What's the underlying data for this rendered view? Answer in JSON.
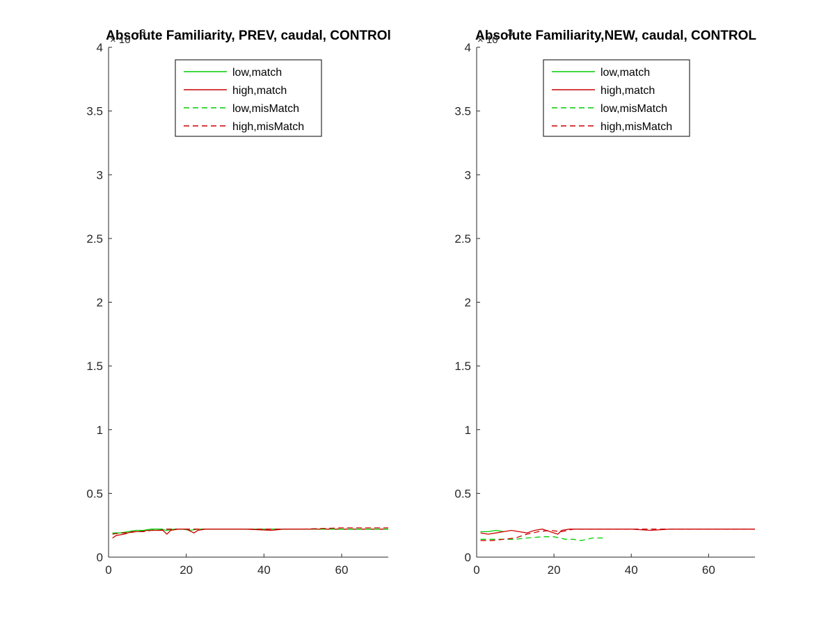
{
  "chart_data": [
    {
      "type": "line",
      "title": "Absolute Familiarity, PREV, caudal, CONTROl",
      "y_exponent_label": "× 10",
      "y_exponent_power": "-3",
      "xlabel": "",
      "ylabel": "",
      "xlim": [
        0,
        72
      ],
      "ylim": [
        0,
        4
      ],
      "xticks": [
        0,
        20,
        40,
        60
      ],
      "xtick_labels": [
        "0",
        "20",
        "40",
        "60"
      ],
      "yticks": [
        0,
        0.5,
        1,
        1.5,
        2,
        2.5,
        3,
        3.5,
        4
      ],
      "ytick_labels": [
        "0",
        "0.5",
        "1",
        "1.5",
        "2",
        "2.5",
        "3",
        "3.5",
        "4"
      ],
      "grid": false,
      "legend_position": "top-center",
      "series": [
        {
          "name": "low,match",
          "color": "#00cc00",
          "dash": "solid",
          "x": [
            1,
            3,
            5,
            7,
            9,
            11,
            13,
            15,
            17,
            19,
            21,
            23,
            25,
            27,
            30,
            40,
            50,
            60,
            72
          ],
          "y": [
            0.19,
            0.19,
            0.2,
            0.21,
            0.21,
            0.22,
            0.22,
            0.21,
            0.22,
            0.22,
            0.21,
            0.22,
            0.22,
            0.22,
            0.22,
            0.22,
            0.22,
            0.22,
            0.22
          ]
        },
        {
          "name": "high,match",
          "color": "#cc0000",
          "dash": "solid",
          "x": [
            1,
            2,
            4,
            6,
            8,
            10,
            12,
            14,
            15,
            16,
            18,
            20,
            22,
            23,
            25,
            28,
            35,
            42,
            45,
            50,
            60,
            72
          ],
          "y": [
            0.15,
            0.17,
            0.18,
            0.2,
            0.2,
            0.21,
            0.21,
            0.21,
            0.18,
            0.21,
            0.22,
            0.22,
            0.19,
            0.21,
            0.22,
            0.22,
            0.22,
            0.21,
            0.22,
            0.22,
            0.22,
            0.22
          ]
        },
        {
          "name": "low,misMatch",
          "color": "#00cc00",
          "dash": "dashed",
          "x": [
            1,
            3,
            5,
            7,
            9,
            11,
            13,
            15,
            18,
            20,
            25,
            30,
            40,
            50,
            60,
            72
          ],
          "y": [
            0.18,
            0.19,
            0.19,
            0.2,
            0.21,
            0.21,
            0.22,
            0.22,
            0.22,
            0.22,
            0.22,
            0.22,
            0.22,
            0.22,
            0.22,
            0.22
          ]
        },
        {
          "name": "high,misMatch",
          "color": "#cc0000",
          "dash": "dashed",
          "x": [
            1,
            3,
            5,
            7,
            9,
            11,
            13,
            15,
            18,
            20,
            25,
            30,
            40,
            50,
            60,
            72
          ],
          "y": [
            0.18,
            0.19,
            0.19,
            0.2,
            0.2,
            0.21,
            0.21,
            0.22,
            0.22,
            0.22,
            0.22,
            0.22,
            0.22,
            0.22,
            0.23,
            0.23
          ]
        }
      ]
    },
    {
      "type": "line",
      "title": "Absolute Familiarity,NEW, caudal, CONTROL",
      "y_exponent_label": "× 10",
      "y_exponent_power": "-3",
      "xlabel": "",
      "ylabel": "",
      "xlim": [
        0,
        72
      ],
      "ylim": [
        0,
        4
      ],
      "xticks": [
        0,
        20,
        40,
        60
      ],
      "xtick_labels": [
        "0",
        "20",
        "40",
        "60"
      ],
      "yticks": [
        0,
        0.5,
        1,
        1.5,
        2,
        2.5,
        3,
        3.5,
        4
      ],
      "ytick_labels": [
        "0",
        "0.5",
        "1",
        "1.5",
        "2",
        "2.5",
        "3",
        "3.5",
        "4"
      ],
      "grid": false,
      "legend_position": "top-center",
      "series": [
        {
          "name": "low,match",
          "color": "#00cc00",
          "dash": "solid",
          "x": [
            1,
            3,
            5,
            7
          ],
          "y": [
            0.2,
            0.2,
            0.21,
            0.2
          ]
        },
        {
          "name": "high,match",
          "color": "#cc0000",
          "dash": "solid",
          "x": [
            1,
            3,
            5,
            7,
            9,
            11,
            13,
            15,
            17,
            19,
            21,
            22,
            24,
            27,
            30,
            35,
            40,
            45,
            50,
            55,
            60,
            72
          ],
          "y": [
            0.19,
            0.18,
            0.19,
            0.2,
            0.21,
            0.2,
            0.19,
            0.21,
            0.22,
            0.2,
            0.18,
            0.21,
            0.22,
            0.22,
            0.22,
            0.22,
            0.22,
            0.21,
            0.22,
            0.22,
            0.22,
            0.22
          ]
        },
        {
          "name": "low,misMatch",
          "color": "#00cc00",
          "dash": "dashed",
          "x": [
            1,
            5,
            10,
            13,
            17,
            20,
            23,
            25,
            27,
            30,
            33
          ],
          "y": [
            0.14,
            0.14,
            0.14,
            0.15,
            0.16,
            0.16,
            0.14,
            0.14,
            0.13,
            0.15,
            0.15
          ]
        },
        {
          "name": "high,misMatch",
          "color": "#cc0000",
          "dash": "dashed",
          "x": [
            1,
            4,
            7,
            10,
            13,
            16,
            19,
            22,
            25,
            30,
            40,
            50,
            60,
            72
          ],
          "y": [
            0.13,
            0.13,
            0.14,
            0.15,
            0.18,
            0.2,
            0.21,
            0.2,
            0.22,
            0.22,
            0.22,
            0.22,
            0.22,
            0.22
          ]
        }
      ]
    }
  ]
}
